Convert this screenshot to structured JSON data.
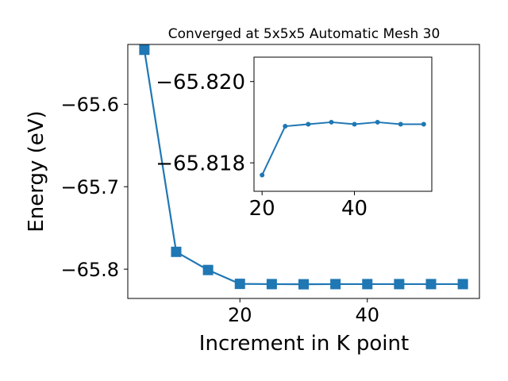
{
  "chart_data": [
    {
      "type": "line",
      "title": "Converged at 5x5x5 Automatic Mesh 30",
      "xlabel": "Increment in K point",
      "ylabel": "Energy (eV)",
      "xlim": [
        2.4,
        57.6
      ],
      "ylim": [
        -65.8355,
        -65.5275
      ],
      "x_ticks": [
        20,
        40
      ],
      "y_ticks": [
        -65.6,
        -65.7,
        -65.8
      ],
      "x_tick_labels": [
        "20",
        "40"
      ],
      "y_tick_labels": [
        "−65.6",
        "−65.7",
        "−65.8"
      ],
      "grid": false,
      "marker": "square",
      "color": "#1f77b4",
      "series": [
        {
          "x": [
            5,
            10,
            15,
            20,
            25,
            30,
            35,
            40,
            45,
            50,
            55
          ],
          "y": [
            -65.534,
            -65.779,
            -65.801,
            -65.8178,
            -65.8181,
            -65.8183,
            -65.8181,
            -65.8181,
            -65.8181,
            -65.8181,
            -65.8181
          ]
        }
      ]
    },
    {
      "type": "line",
      "title": "",
      "xlabel": "",
      "ylabel": "",
      "xlim": [
        18.25,
        56.75
      ],
      "ylim": [
        -65.8173,
        -65.8206
      ],
      "x_ticks": [
        20,
        40
      ],
      "y_ticks": [
        -65.82,
        -65.818
      ],
      "x_tick_labels": [
        "20",
        "40"
      ],
      "y_tick_labels": [
        "−65.820",
        "−65.818"
      ],
      "grid": false,
      "marker": "circle",
      "color": "#1f77b4",
      "series": [
        {
          "x": [
            20,
            25,
            30,
            35,
            40,
            45,
            50,
            55
          ],
          "y": [
            -65.8177,
            -65.8189,
            -65.81895,
            -65.819,
            -65.81895,
            -65.819,
            -65.81895,
            -65.81895
          ]
        }
      ]
    }
  ]
}
